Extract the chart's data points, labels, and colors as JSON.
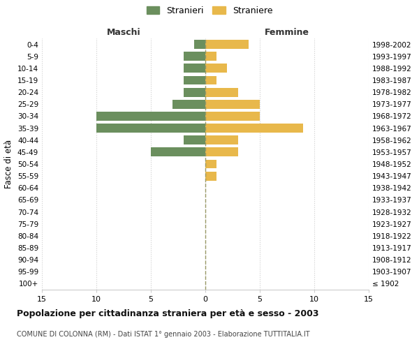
{
  "age_groups": [
    "100+",
    "95-99",
    "90-94",
    "85-89",
    "80-84",
    "75-79",
    "70-74",
    "65-69",
    "60-64",
    "55-59",
    "50-54",
    "45-49",
    "40-44",
    "35-39",
    "30-34",
    "25-29",
    "20-24",
    "15-19",
    "10-14",
    "5-9",
    "0-4"
  ],
  "birth_years": [
    "≤ 1902",
    "1903-1907",
    "1908-1912",
    "1913-1917",
    "1918-1922",
    "1923-1927",
    "1928-1932",
    "1933-1937",
    "1938-1942",
    "1943-1947",
    "1948-1952",
    "1953-1957",
    "1958-1962",
    "1963-1967",
    "1968-1972",
    "1973-1977",
    "1978-1982",
    "1983-1987",
    "1988-1992",
    "1993-1997",
    "1998-2002"
  ],
  "maschi": [
    0,
    0,
    0,
    0,
    0,
    0,
    0,
    0,
    0,
    0,
    0,
    5,
    2,
    10,
    10,
    3,
    2,
    2,
    2,
    2,
    1
  ],
  "femmine": [
    0,
    0,
    0,
    0,
    0,
    0,
    0,
    0,
    0,
    1,
    1,
    3,
    3,
    9,
    5,
    5,
    3,
    1,
    2,
    1,
    4
  ],
  "maschi_color": "#6b8f5e",
  "femmine_color": "#e8b84b",
  "title": "Popolazione per cittadinanza straniera per età e sesso - 2003",
  "subtitle": "COMUNE DI COLONNA (RM) - Dati ISTAT 1° gennaio 2003 - Elaborazione TUTTITALIA.IT",
  "xlabel_left": "Maschi",
  "xlabel_right": "Femmine",
  "ylabel_left": "Fasce di età",
  "legend_stranieri": "Stranieri",
  "legend_straniere": "Straniere",
  "xlim": 15,
  "background_color": "#ffffff",
  "grid_color": "#cccccc",
  "bar_height": 0.75
}
